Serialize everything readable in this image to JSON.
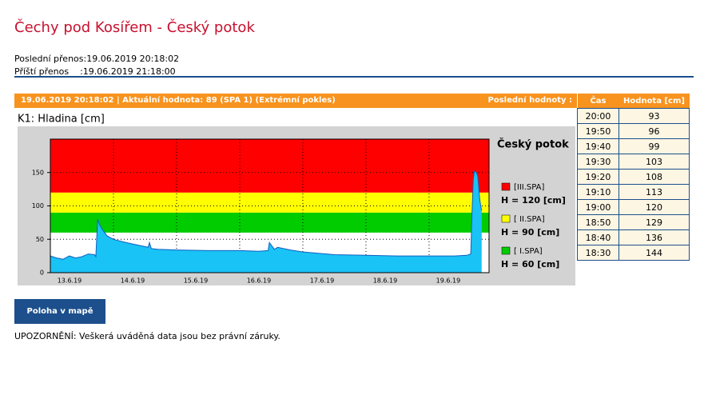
{
  "header": {
    "title": "Čechy pod Kosířem - Český potok",
    "last_transfer": "Poslední přenos:19.06.2019 20:18:02",
    "next_transfer": "Příští přenos    :19.06.2019 21:18:00"
  },
  "status_bar": {
    "text": "19.06.2019 20:18:02 | Aktuální hodnota: 89 (SPA 1) (Extrémní pokles)",
    "last_values_label": "Poslední hodnoty :"
  },
  "table": {
    "headers": [
      "Čas",
      "Hodnota [cm]"
    ],
    "rows": [
      [
        "20:00",
        "93"
      ],
      [
        "19:50",
        "96"
      ],
      [
        "19:40",
        "99"
      ],
      [
        "19:30",
        "103"
      ],
      [
        "19:20",
        "108"
      ],
      [
        "19:10",
        "113"
      ],
      [
        "19:00",
        "120"
      ],
      [
        "18:50",
        "129"
      ],
      [
        "18:40",
        "136"
      ],
      [
        "18:30",
        "144"
      ]
    ]
  },
  "chart_data": {
    "type": "area",
    "title": "K1: Hladina [cm]",
    "legend_title": "Český potok",
    "thresholds": [
      {
        "name": "[III.SPA]",
        "label": "H = 120 [cm]",
        "value": 120,
        "color": "#ff0000"
      },
      {
        "name": "[ II.SPA]",
        "label": "H = 90 [cm]",
        "value": 90,
        "color": "#ffff00"
      },
      {
        "name": "[  I.SPA]",
        "label": "H = 60 [cm]",
        "value": 60,
        "color": "#00cc00"
      }
    ],
    "ylim": [
      0,
      200
    ],
    "yticks": [
      0,
      50,
      100,
      150
    ],
    "xlim": [
      13,
      19.95
    ],
    "xticks": [
      {
        "value": 13,
        "label": "13.6.19"
      },
      {
        "value": 14,
        "label": "14.6.19"
      },
      {
        "value": 15,
        "label": "15.6.19"
      },
      {
        "value": 16,
        "label": "16.6.19"
      },
      {
        "value": 17,
        "label": "17.6.19"
      },
      {
        "value": 18,
        "label": "18.6.19"
      },
      {
        "value": 19,
        "label": "19.6.19"
      }
    ],
    "grid": true,
    "series": [
      {
        "color": "#19c3f5",
        "line_color": "#1060c0",
        "x": [
          13.0,
          13.1,
          13.2,
          13.3,
          13.4,
          13.5,
          13.6,
          13.7,
          13.72,
          13.75,
          13.78,
          13.82,
          13.9,
          14.0,
          14.2,
          14.4,
          14.55,
          14.57,
          14.6,
          14.7,
          15.0,
          15.5,
          16.0,
          16.3,
          16.45,
          16.47,
          16.55,
          16.6,
          16.8,
          17.0,
          17.5,
          18.0,
          18.5,
          19.0,
          19.4,
          19.6,
          19.66,
          19.68,
          19.7,
          19.72,
          19.75,
          19.771,
          19.778,
          19.785,
          19.792,
          19.799,
          19.806,
          19.813,
          19.82,
          19.826,
          19.833
        ],
        "values": [
          25,
          22,
          20,
          25,
          22,
          24,
          28,
          27,
          24,
          80,
          72,
          65,
          55,
          50,
          45,
          41,
          38,
          45,
          36,
          35,
          34,
          33,
          33,
          32,
          33,
          45,
          35,
          38,
          34,
          31,
          27,
          26,
          25,
          25,
          25,
          26,
          28,
          90,
          140,
          152,
          150,
          144,
          136,
          129,
          120,
          113,
          108,
          103,
          99,
          96,
          93
        ]
      }
    ]
  },
  "button": {
    "label": "Poloha v mapě"
  },
  "footer": {
    "warning": "UPOZORNĚNÍ: Veškerá uváděná data jsou bez právní záruky."
  }
}
